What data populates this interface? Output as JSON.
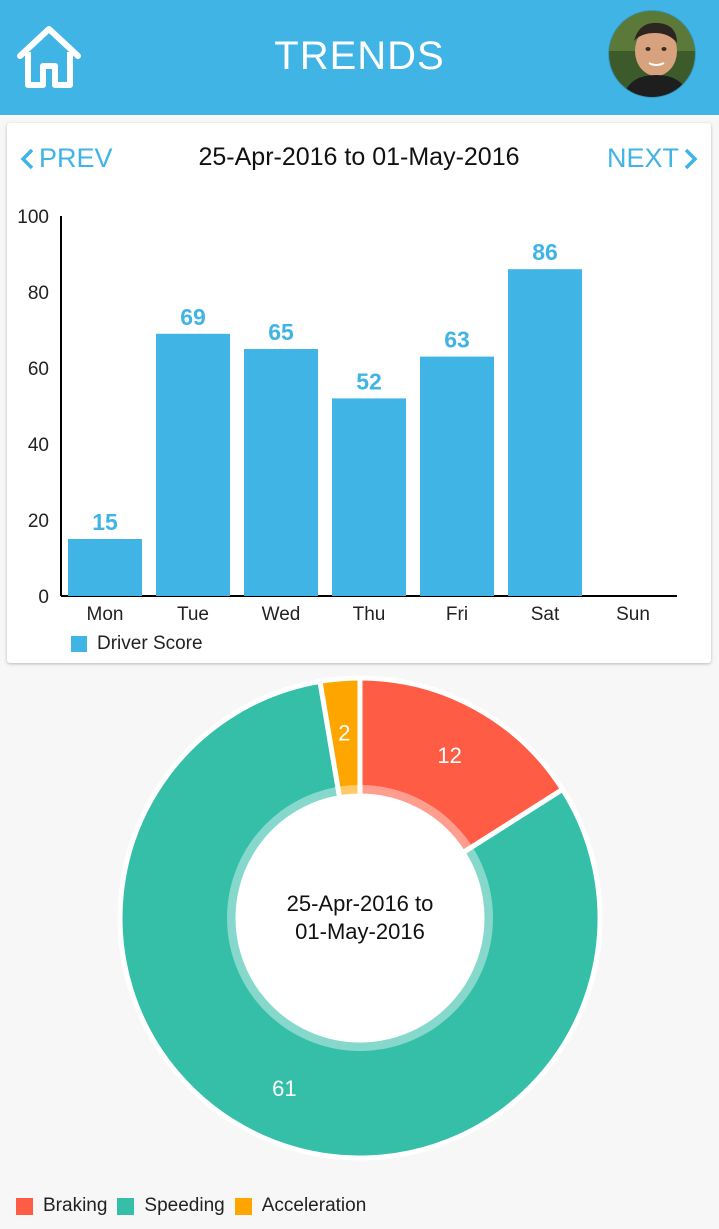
{
  "header": {
    "title": "TRENDS"
  },
  "nav": {
    "prev_label": "PREV",
    "next_label": "NEXT",
    "date_range": "25-Apr-2016 to 01-May-2016"
  },
  "chart_data": [
    {
      "type": "bar",
      "categories": [
        "Mon",
        "Tue",
        "Wed",
        "Thu",
        "Fri",
        "Sat",
        "Sun"
      ],
      "values": [
        15,
        69,
        65,
        52,
        63,
        86,
        null
      ],
      "yticks": [
        0,
        20,
        40,
        60,
        80,
        100
      ],
      "ylim": [
        0,
        100
      ],
      "series": [
        {
          "name": "Driver Score",
          "color": "#41b4e6"
        }
      ],
      "legend": "bottom-left",
      "grid": false
    },
    {
      "type": "pie",
      "donut": true,
      "center_text_line1": "25-Apr-2016 to",
      "center_text_line2": "01-May-2016",
      "slices": [
        {
          "name": "Braking",
          "value": 12,
          "color": "#ff5c45"
        },
        {
          "name": "Speeding",
          "value": 61,
          "color": "#35bfa8"
        },
        {
          "name": "Acceleration",
          "value": 2,
          "color": "#ffa500"
        }
      ],
      "legend": "bottom-left"
    }
  ]
}
